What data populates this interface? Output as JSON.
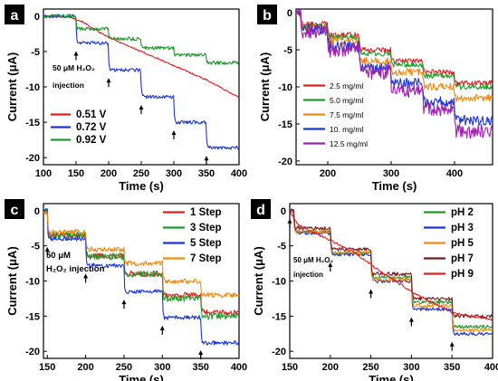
{
  "chart_data": [
    {
      "type": "line",
      "panel_label": "a",
      "xlabel": "Time (s)",
      "ylabel": "Current (μA)",
      "xlim": [
        100,
        400
      ],
      "ylim": [
        -21,
        1
      ],
      "xticks": [
        100,
        150,
        200,
        250,
        300,
        350,
        400
      ],
      "xtick_labels": [
        "100",
        "150",
        "200",
        "250",
        "300",
        "350",
        "400"
      ],
      "yticks": [
        0,
        -5,
        -10,
        -15,
        -20
      ],
      "ytick_labels": [
        "0",
        "-5",
        "-10",
        "-15",
        "-20"
      ],
      "legend_position": "bottom-left",
      "annotation": {
        "text": [
          "50 μM H₂O₂",
          "injection"
        ]
      },
      "arrows_at_x": [
        150,
        200,
        250,
        300,
        350
      ],
      "series": [
        {
          "name": "0.51 V",
          "color": "#e02020",
          "shape": "smooth",
          "noise": 0.1,
          "x": [
            100,
            140,
            160,
            180,
            200,
            250,
            300,
            350,
            400
          ],
          "y": [
            0,
            -0.1,
            -0.8,
            -2.0,
            -3.0,
            -5.0,
            -7.0,
            -9.0,
            -11.5
          ]
        },
        {
          "name": "0.72 V",
          "color": "#1a35d8",
          "shape": "step",
          "noise": 0.25,
          "x": [
            100,
            150,
            200,
            250,
            300,
            350,
            400
          ],
          "y": [
            0,
            -3.8,
            -7.6,
            -11.4,
            -15.0,
            -18.6,
            -18.8
          ]
        },
        {
          "name": "0.92 V",
          "color": "#1e9a2a",
          "shape": "step",
          "noise": 0.25,
          "x": [
            100,
            150,
            200,
            250,
            300,
            350,
            400
          ],
          "y": [
            0,
            -1.8,
            -3.2,
            -4.5,
            -5.5,
            -6.6,
            -7.2
          ]
        }
      ]
    },
    {
      "type": "line",
      "panel_label": "b",
      "xlabel": "Time (s)",
      "ylabel": "Current (μA)",
      "xlim": [
        150,
        460
      ],
      "ylim": [
        -20.5,
        0.5
      ],
      "xticks": [
        200,
        300,
        400
      ],
      "xtick_labels": [
        "200",
        "300",
        "400"
      ],
      "yticks": [
        0,
        -5,
        -10,
        -15,
        -20
      ],
      "ytick_labels": [
        "0",
        "-5",
        "-10",
        "-15",
        "-20"
      ],
      "legend_position": "center-left",
      "series": [
        {
          "name": "2.5 mg/ml",
          "color": "#e02020",
          "shape": "step",
          "noise": 0.35,
          "x": [
            150,
            158,
            200,
            250,
            300,
            350,
            400,
            460
          ],
          "y": [
            0,
            -1.5,
            -3.0,
            -5.0,
            -6.5,
            -8.0,
            -9.5,
            -10.5
          ]
        },
        {
          "name": "5.0 mg/ml",
          "color": "#1e9a2a",
          "shape": "step",
          "noise": 0.35,
          "x": [
            150,
            158,
            200,
            250,
            300,
            350,
            400,
            460
          ],
          "y": [
            0,
            -1.8,
            -3.3,
            -5.5,
            -7.0,
            -8.5,
            -10.0,
            -11.0
          ]
        },
        {
          "name": "7.5 mg/ml",
          "color": "#f08a10",
          "shape": "step",
          "noise": 0.5,
          "x": [
            150,
            158,
            200,
            250,
            300,
            350,
            400,
            460
          ],
          "y": [
            0,
            -2.0,
            -3.8,
            -6.5,
            -8.0,
            -10.0,
            -11.5,
            -12.5
          ]
        },
        {
          "name": "10. mg/ml",
          "color": "#1a35d8",
          "shape": "step",
          "noise": 0.7,
          "x": [
            150,
            158,
            200,
            250,
            300,
            350,
            400,
            460
          ],
          "y": [
            0,
            -2.2,
            -4.5,
            -7.5,
            -9.5,
            -12.0,
            -14.5,
            -17.0
          ]
        },
        {
          "name": "12.5 mg/ml",
          "color": "#a020b0",
          "shape": "step",
          "noise": 1.0,
          "x": [
            150,
            158,
            200,
            250,
            300,
            350,
            400,
            460
          ],
          "y": [
            0,
            -2.5,
            -5.0,
            -8.0,
            -10.5,
            -13.0,
            -16.0,
            -18.5
          ]
        }
      ]
    },
    {
      "type": "line",
      "panel_label": "c",
      "xlabel": "Time (s)",
      "ylabel": "Current (μA)",
      "xlim": [
        145,
        400
      ],
      "ylim": [
        -21,
        1
      ],
      "xticks": [
        150,
        200,
        250,
        300,
        350,
        400
      ],
      "xtick_labels": [
        "150",
        "200",
        "250",
        "300",
        "350",
        "400"
      ],
      "yticks": [
        0,
        -5,
        -10,
        -15,
        -20
      ],
      "ytick_labels": [
        "0",
        "-5",
        "-10",
        "-15",
        "-20"
      ],
      "legend_position": "top-right",
      "annotation": {
        "text": [
          "50 μM",
          "H₂O₂ injection"
        ]
      },
      "arrows_at_x": [
        150,
        200,
        250,
        300,
        350
      ],
      "series": [
        {
          "name": "1 Step",
          "color": "#e02020",
          "shape": "step",
          "noise": 0.45,
          "x": [
            145,
            150,
            200,
            250,
            300,
            350,
            400
          ],
          "y": [
            0,
            -3.5,
            -6.5,
            -9.0,
            -12.0,
            -14.5,
            -15.0
          ]
        },
        {
          "name": "3 Step",
          "color": "#1e9a2a",
          "shape": "step",
          "noise": 0.45,
          "x": [
            145,
            150,
            200,
            250,
            300,
            350,
            400
          ],
          "y": [
            0,
            -3.5,
            -6.5,
            -9.0,
            -12.5,
            -15.0,
            -15.5
          ]
        },
        {
          "name": "5 Step",
          "color": "#1a35d8",
          "shape": "step",
          "noise": 0.3,
          "x": [
            145,
            150,
            200,
            250,
            300,
            350,
            400
          ],
          "y": [
            0,
            -4.0,
            -7.8,
            -11.5,
            -15.2,
            -18.8,
            -19.0
          ]
        },
        {
          "name": "7 Step",
          "color": "#f08a10",
          "shape": "step",
          "noise": 0.35,
          "x": [
            145,
            150,
            200,
            250,
            300,
            350,
            400
          ],
          "y": [
            0,
            -3.0,
            -5.5,
            -7.5,
            -10.0,
            -12.0,
            -12.5
          ]
        }
      ]
    },
    {
      "type": "line",
      "panel_label": "d",
      "xlabel": "Time (s)",
      "ylabel": "Current (μA)",
      "xlim": [
        150,
        400
      ],
      "ylim": [
        -21,
        1
      ],
      "xticks": [
        150,
        200,
        250,
        300,
        350,
        400
      ],
      "xtick_labels": [
        "150",
        "200",
        "250",
        "300",
        "350",
        "400"
      ],
      "yticks": [
        0,
        -5,
        -10,
        -15,
        -20
      ],
      "ytick_labels": [
        "0",
        "-5",
        "-10",
        "-15",
        "-20"
      ],
      "legend_position": "top-right",
      "annotation": {
        "text": [
          "50 μM H₂O₂",
          "injection"
        ]
      },
      "arrows_at_x": [
        150,
        200,
        250,
        300,
        350
      ],
      "series": [
        {
          "name": "pH 2",
          "color": "#1e9a2a",
          "shape": "step",
          "noise": 0.25,
          "x": [
            150,
            155,
            200,
            250,
            300,
            350,
            400
          ],
          "y": [
            0,
            -3.0,
            -6.0,
            -9.5,
            -13.0,
            -16.5,
            -17.0
          ]
        },
        {
          "name": "pH 3",
          "color": "#1a35d8",
          "shape": "step",
          "noise": 0.25,
          "x": [
            150,
            155,
            200,
            250,
            300,
            350,
            400
          ],
          "y": [
            0,
            -3.2,
            -6.2,
            -10.0,
            -14.0,
            -17.5,
            -18.0
          ]
        },
        {
          "name": "pH 5",
          "color": "#f08a10",
          "shape": "step",
          "noise": 0.25,
          "x": [
            150,
            155,
            200,
            250,
            300,
            350,
            400
          ],
          "y": [
            0,
            -3.0,
            -6.0,
            -9.8,
            -13.5,
            -17.0,
            -17.5
          ]
        },
        {
          "name": "pH 7",
          "color": "#7a1a1a",
          "shape": "step",
          "noise": 0.25,
          "x": [
            150,
            155,
            200,
            250,
            300,
            350,
            400
          ],
          "y": [
            0,
            -2.5,
            -5.5,
            -9.0,
            -12.5,
            -15.0,
            -15.5
          ]
        },
        {
          "name": "pH 9",
          "color": "#e02020",
          "shape": "smooth",
          "noise": 0.15,
          "x": [
            150,
            160,
            180,
            200,
            230,
            260,
            300,
            350,
            400
          ],
          "y": [
            0,
            -2.0,
            -3.2,
            -4.2,
            -6.0,
            -8.5,
            -11.5,
            -14.5,
            -15.5
          ]
        }
      ]
    }
  ]
}
